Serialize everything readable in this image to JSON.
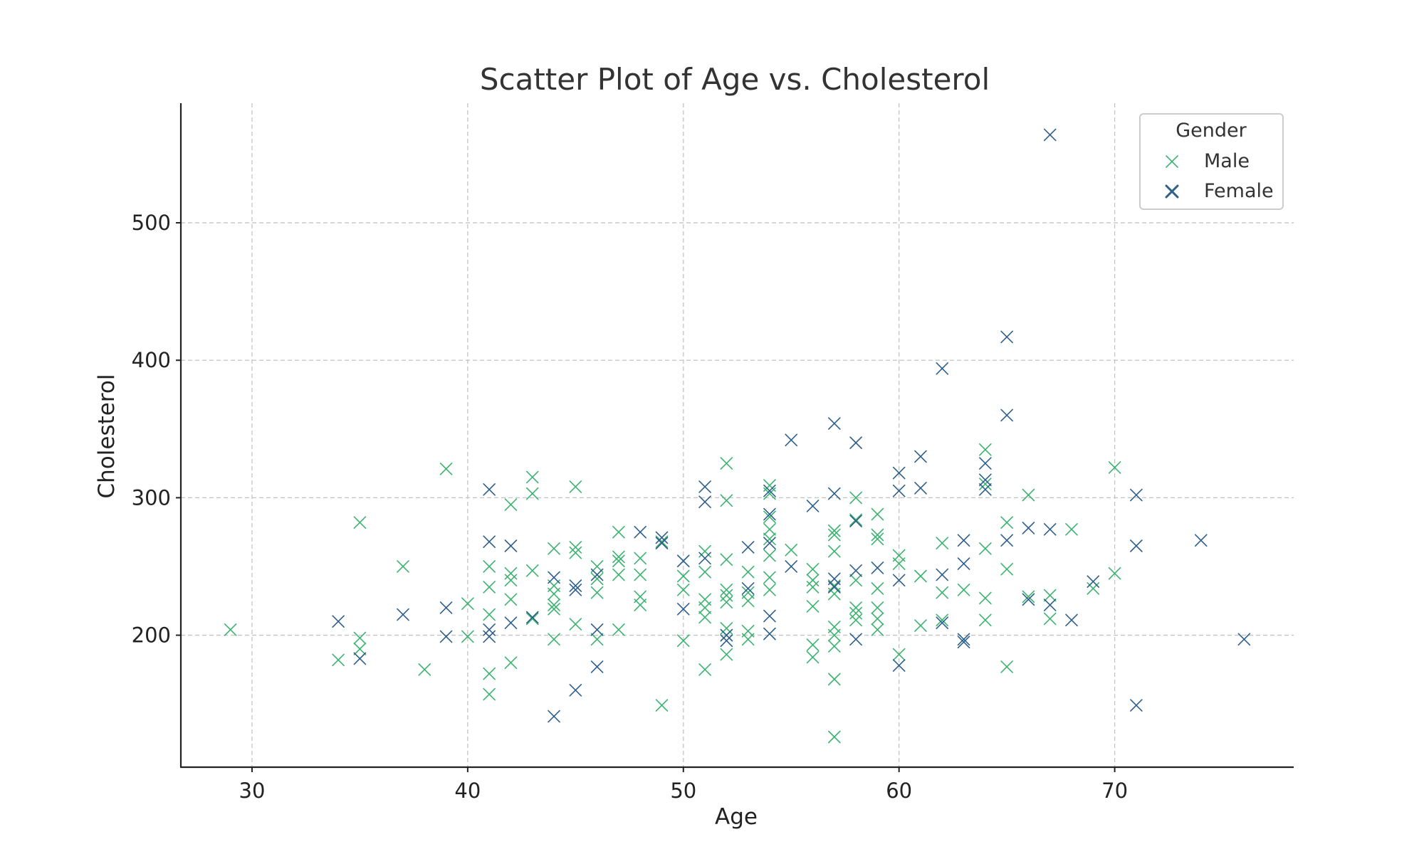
{
  "chart_data": {
    "type": "scatter",
    "title": "Scatter Plot of Age vs. Cholesterol",
    "xlabel": "Age",
    "ylabel": "Cholesterol",
    "xlim": [
      26.7,
      78.3
    ],
    "ylim": [
      104,
      587
    ],
    "xticks": [
      30,
      40,
      50,
      60,
      70
    ],
    "yticks": [
      200,
      300,
      400,
      500
    ],
    "grid": true,
    "legend": {
      "title": "Gender",
      "placement": "top-right"
    },
    "marker": "x",
    "series": [
      {
        "name": "Male",
        "color": "#3cb371",
        "points": [
          [
            29,
            204
          ],
          [
            34,
            182
          ],
          [
            35,
            282
          ],
          [
            35,
            198
          ],
          [
            35,
            190
          ],
          [
            37,
            250
          ],
          [
            38,
            175
          ],
          [
            39,
            321
          ],
          [
            40,
            223
          ],
          [
            40,
            199
          ],
          [
            41,
            250
          ],
          [
            41,
            235
          ],
          [
            41,
            215
          ],
          [
            41,
            172
          ],
          [
            41,
            157
          ],
          [
            42,
            295
          ],
          [
            42,
            245
          ],
          [
            42,
            240
          ],
          [
            42,
            226
          ],
          [
            42,
            180
          ],
          [
            43,
            315
          ],
          [
            43,
            303
          ],
          [
            43,
            247
          ],
          [
            43,
            212
          ],
          [
            44,
            263
          ],
          [
            44,
            236
          ],
          [
            44,
            230
          ],
          [
            44,
            222
          ],
          [
            44,
            219
          ],
          [
            44,
            197
          ],
          [
            45,
            308
          ],
          [
            45,
            264
          ],
          [
            45,
            260
          ],
          [
            45,
            208
          ],
          [
            46,
            250
          ],
          [
            46,
            241
          ],
          [
            46,
            231
          ],
          [
            46,
            197
          ],
          [
            47,
            275
          ],
          [
            47,
            257
          ],
          [
            47,
            254
          ],
          [
            47,
            244
          ],
          [
            47,
            204
          ],
          [
            48,
            256
          ],
          [
            48,
            244
          ],
          [
            48,
            228
          ],
          [
            48,
            222
          ],
          [
            49,
            268
          ],
          [
            49,
            149
          ],
          [
            50,
            243
          ],
          [
            50,
            233
          ],
          [
            50,
            196
          ],
          [
            51,
            261
          ],
          [
            51,
            246
          ],
          [
            51,
            226
          ],
          [
            51,
            220
          ],
          [
            51,
            213
          ],
          [
            51,
            175
          ],
          [
            52,
            325
          ],
          [
            52,
            298
          ],
          [
            52,
            255
          ],
          [
            52,
            233
          ],
          [
            52,
            229
          ],
          [
            52,
            224
          ],
          [
            52,
            205
          ],
          [
            52,
            200
          ],
          [
            52,
            186
          ],
          [
            53,
            246
          ],
          [
            53,
            231
          ],
          [
            53,
            225
          ],
          [
            53,
            203
          ],
          [
            53,
            197
          ],
          [
            54,
            309
          ],
          [
            54,
            303
          ],
          [
            54,
            286
          ],
          [
            54,
            277
          ],
          [
            54,
            270
          ],
          [
            54,
            258
          ],
          [
            54,
            242
          ],
          [
            54,
            233
          ],
          [
            55,
            262
          ],
          [
            56,
            248
          ],
          [
            56,
            240
          ],
          [
            56,
            235
          ],
          [
            56,
            221
          ],
          [
            56,
            193
          ],
          [
            56,
            184
          ],
          [
            57,
            276
          ],
          [
            57,
            273
          ],
          [
            57,
            261
          ],
          [
            57,
            236
          ],
          [
            57,
            230
          ],
          [
            57,
            206
          ],
          [
            57,
            200
          ],
          [
            57,
            192
          ],
          [
            57,
            168
          ],
          [
            57,
            126
          ],
          [
            58,
            300
          ],
          [
            58,
            284
          ],
          [
            58,
            240
          ],
          [
            58,
            220
          ],
          [
            58,
            216
          ],
          [
            58,
            211
          ],
          [
            59,
            288
          ],
          [
            59,
            273
          ],
          [
            59,
            270
          ],
          [
            59,
            234
          ],
          [
            59,
            220
          ],
          [
            59,
            212
          ],
          [
            59,
            204
          ],
          [
            60,
            258
          ],
          [
            60,
            252
          ],
          [
            60,
            186
          ],
          [
            61,
            243
          ],
          [
            61,
            207
          ],
          [
            62,
            267
          ],
          [
            62,
            231
          ],
          [
            62,
            211
          ],
          [
            63,
            233
          ],
          [
            64,
            335
          ],
          [
            64,
            310
          ],
          [
            64,
            263
          ],
          [
            64,
            227
          ],
          [
            64,
            211
          ],
          [
            65,
            282
          ],
          [
            65,
            248
          ],
          [
            65,
            177
          ],
          [
            66,
            302
          ],
          [
            66,
            228
          ],
          [
            67,
            229
          ],
          [
            67,
            212
          ],
          [
            68,
            277
          ],
          [
            69,
            234
          ],
          [
            70,
            322
          ],
          [
            70,
            245
          ]
        ]
      },
      {
        "name": "Female",
        "color": "#2e5f8a",
        "points": [
          [
            34,
            210
          ],
          [
            35,
            183
          ],
          [
            37,
            215
          ],
          [
            39,
            220
          ],
          [
            39,
            199
          ],
          [
            41,
            306
          ],
          [
            41,
            268
          ],
          [
            41,
            204
          ],
          [
            41,
            199
          ],
          [
            42,
            265
          ],
          [
            42,
            209
          ],
          [
            43,
            213
          ],
          [
            44,
            242
          ],
          [
            44,
            141
          ],
          [
            45,
            236
          ],
          [
            45,
            233
          ],
          [
            45,
            160
          ],
          [
            46,
            244
          ],
          [
            46,
            204
          ],
          [
            46,
            177
          ],
          [
            48,
            275
          ],
          [
            49,
            271
          ],
          [
            49,
            267
          ],
          [
            50,
            254
          ],
          [
            50,
            219
          ],
          [
            51,
            308
          ],
          [
            51,
            297
          ],
          [
            51,
            256
          ],
          [
            52,
            200
          ],
          [
            52,
            196
          ],
          [
            53,
            264
          ],
          [
            53,
            234
          ],
          [
            54,
            305
          ],
          [
            54,
            288
          ],
          [
            54,
            267
          ],
          [
            54,
            214
          ],
          [
            54,
            201
          ],
          [
            55,
            342
          ],
          [
            55,
            250
          ],
          [
            56,
            294
          ],
          [
            57,
            354
          ],
          [
            57,
            303
          ],
          [
            57,
            241
          ],
          [
            57,
            235
          ],
          [
            58,
            340
          ],
          [
            58,
            283
          ],
          [
            58,
            247
          ],
          [
            58,
            197
          ],
          [
            59,
            249
          ],
          [
            60,
            318
          ],
          [
            60,
            305
          ],
          [
            60,
            240
          ],
          [
            60,
            178
          ],
          [
            61,
            330
          ],
          [
            61,
            307
          ],
          [
            62,
            394
          ],
          [
            62,
            244
          ],
          [
            62,
            209
          ],
          [
            63,
            269
          ],
          [
            63,
            252
          ],
          [
            63,
            197
          ],
          [
            63,
            195
          ],
          [
            64,
            325
          ],
          [
            64,
            313
          ],
          [
            64,
            306
          ],
          [
            65,
            417
          ],
          [
            65,
            360
          ],
          [
            65,
            269
          ],
          [
            66,
            278
          ],
          [
            66,
            226
          ],
          [
            67,
            564
          ],
          [
            67,
            277
          ],
          [
            67,
            222
          ],
          [
            68,
            211
          ],
          [
            69,
            239
          ],
          [
            71,
            302
          ],
          [
            71,
            265
          ],
          [
            71,
            149
          ],
          [
            74,
            269
          ],
          [
            76,
            197
          ]
        ]
      }
    ]
  }
}
